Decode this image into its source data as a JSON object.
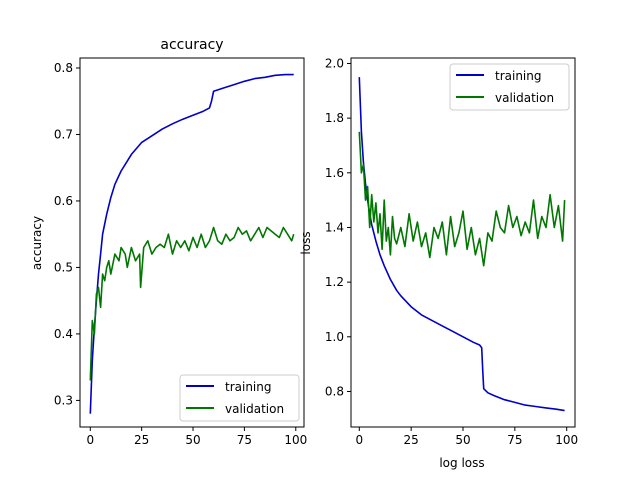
{
  "chart_data": [
    {
      "type": "line",
      "title": "accuracy",
      "xlabel": "",
      "ylabel": "accuracy",
      "xlim": [
        -5,
        104
      ],
      "ylim": [
        0.26,
        0.815
      ],
      "xticks": [
        "0",
        "25",
        "50",
        "75",
        "100"
      ],
      "yticks": [
        "0.3",
        "0.4",
        "0.5",
        "0.6",
        "0.7",
        "0.8"
      ],
      "legend_position": "lower-right",
      "grid": false,
      "series": [
        {
          "name": "training",
          "color": "#0000cc",
          "x": [
            0,
            1,
            2,
            3,
            4,
            5,
            6,
            8,
            10,
            12,
            15,
            18,
            20,
            25,
            30,
            35,
            40,
            45,
            50,
            55,
            58,
            59,
            60,
            65,
            70,
            75,
            80,
            85,
            90,
            95,
            99
          ],
          "y": [
            0.28,
            0.36,
            0.41,
            0.45,
            0.49,
            0.52,
            0.55,
            0.58,
            0.605,
            0.625,
            0.645,
            0.66,
            0.67,
            0.688,
            0.698,
            0.708,
            0.716,
            0.723,
            0.729,
            0.735,
            0.74,
            0.75,
            0.765,
            0.77,
            0.775,
            0.78,
            0.784,
            0.786,
            0.789,
            0.79,
            0.79
          ]
        },
        {
          "name": "validation",
          "color": "#007700",
          "x": [
            0,
            1,
            2,
            3,
            4,
            5,
            6,
            7,
            8,
            9,
            10,
            12,
            14,
            15,
            17,
            18,
            20,
            22,
            24,
            24.5,
            26,
            28,
            30,
            32,
            34,
            36,
            38,
            40,
            42,
            44,
            46,
            48,
            50,
            52,
            54,
            56,
            58,
            60,
            62,
            64,
            66,
            68,
            70,
            72,
            74,
            76,
            78,
            80,
            82,
            84,
            86,
            88,
            90,
            92,
            94,
            96,
            98,
            99
          ],
          "y": [
            0.33,
            0.42,
            0.4,
            0.46,
            0.47,
            0.44,
            0.49,
            0.48,
            0.5,
            0.51,
            0.49,
            0.52,
            0.51,
            0.53,
            0.52,
            0.5,
            0.53,
            0.51,
            0.52,
            0.47,
            0.53,
            0.54,
            0.52,
            0.53,
            0.535,
            0.53,
            0.55,
            0.52,
            0.54,
            0.53,
            0.54,
            0.525,
            0.545,
            0.53,
            0.55,
            0.53,
            0.54,
            0.56,
            0.54,
            0.535,
            0.55,
            0.54,
            0.545,
            0.56,
            0.55,
            0.555,
            0.54,
            0.55,
            0.56,
            0.545,
            0.56,
            0.555,
            0.55,
            0.545,
            0.56,
            0.55,
            0.54,
            0.55
          ]
        }
      ]
    },
    {
      "type": "line",
      "title": "",
      "xlabel": "log loss",
      "ylabel": "loss",
      "xlim": [
        -4,
        104
      ],
      "ylim": [
        0.67,
        2.02
      ],
      "xticks": [
        "0",
        "25",
        "50",
        "75",
        "100"
      ],
      "yticks": [
        "0.8",
        "1.0",
        "1.2",
        "1.4",
        "1.6",
        "1.8",
        "2.0"
      ],
      "legend_position": "upper-right",
      "grid": false,
      "series": [
        {
          "name": "training",
          "color": "#0000cc",
          "x": [
            0,
            1,
            2,
            3,
            4,
            5,
            6,
            8,
            10,
            12,
            15,
            18,
            20,
            25,
            30,
            35,
            40,
            45,
            50,
            55,
            58,
            59,
            59.5,
            60,
            62,
            65,
            70,
            75,
            80,
            85,
            90,
            95,
            99
          ],
          "y": [
            1.95,
            1.75,
            1.64,
            1.56,
            1.5,
            1.45,
            1.41,
            1.35,
            1.3,
            1.26,
            1.21,
            1.17,
            1.15,
            1.11,
            1.08,
            1.06,
            1.04,
            1.02,
            1.0,
            0.98,
            0.97,
            0.96,
            0.88,
            0.81,
            0.795,
            0.785,
            0.77,
            0.76,
            0.75,
            0.745,
            0.74,
            0.735,
            0.73
          ]
        },
        {
          "name": "validation",
          "color": "#007700",
          "x": [
            0,
            1,
            2,
            3,
            4,
            5,
            6,
            7,
            8,
            9,
            10,
            11,
            12,
            13,
            14,
            15,
            16,
            17,
            18,
            20,
            22,
            24,
            26,
            28,
            30,
            32,
            34,
            36,
            38,
            40,
            42,
            44,
            46,
            48,
            50,
            52,
            54,
            56,
            58,
            60,
            62,
            64,
            66,
            68,
            70,
            72,
            74,
            76,
            78,
            80,
            82,
            84,
            86,
            88,
            90,
            92,
            94,
            96,
            98,
            99
          ],
          "y": [
            1.75,
            1.6,
            1.63,
            1.5,
            1.55,
            1.4,
            1.52,
            1.42,
            1.49,
            1.38,
            1.45,
            1.32,
            1.5,
            1.35,
            1.4,
            1.3,
            1.44,
            1.36,
            1.34,
            1.4,
            1.33,
            1.45,
            1.35,
            1.42,
            1.33,
            1.38,
            1.29,
            1.4,
            1.36,
            1.42,
            1.3,
            1.44,
            1.33,
            1.38,
            1.46,
            1.32,
            1.4,
            1.3,
            1.36,
            1.26,
            1.38,
            1.35,
            1.46,
            1.4,
            1.38,
            1.48,
            1.4,
            1.44,
            1.37,
            1.42,
            1.38,
            1.5,
            1.36,
            1.44,
            1.4,
            1.52,
            1.4,
            1.48,
            1.35,
            1.5
          ]
        }
      ]
    }
  ]
}
